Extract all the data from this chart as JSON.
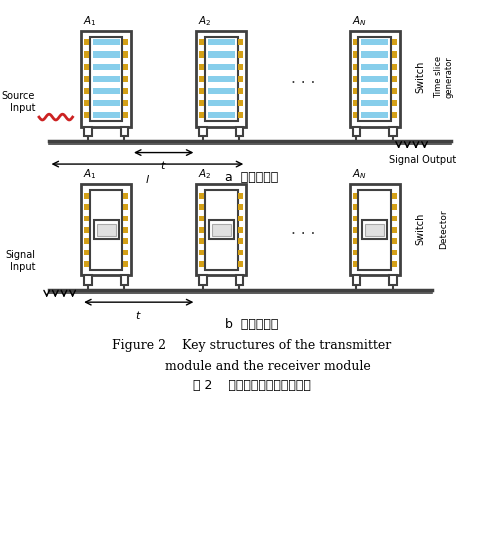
{
  "bg_color": "#ffffff",
  "title_en": "Figure 2    Key structures of the transmitter\n        module and the receiver module",
  "title_cn": "图 2    光发射模块和光接收模块",
  "label_a": "a  光发射模块",
  "label_b": "b  光接收模块",
  "gold_color": "#D4A017",
  "blue_color": "#87CEEB",
  "dark_gray": "#404040",
  "light_gray": "#888888",
  "red_color": "#CC2222",
  "line_width": 2.5,
  "thin_line": 1.2
}
